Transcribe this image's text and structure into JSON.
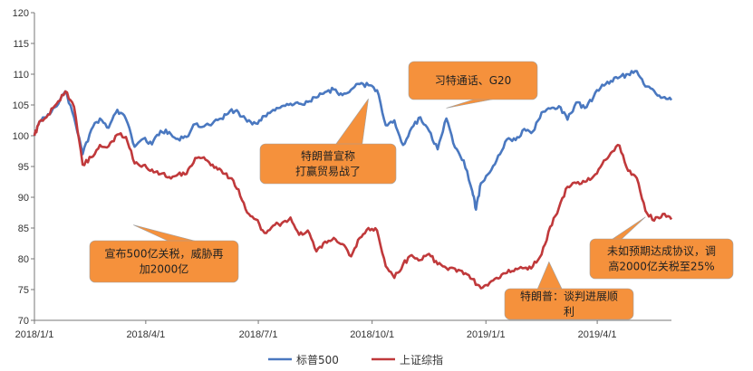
{
  "chart_data": {
    "type": "line",
    "title": "",
    "xlabel": "",
    "ylabel": "",
    "ylim": [
      70,
      120
    ],
    "yticks": [
      70,
      75,
      80,
      85,
      90,
      95,
      100,
      105,
      110,
      115,
      120
    ],
    "xticks": [
      "2018/1/1",
      "2018/4/1",
      "2018/7/1",
      "2018/10/1",
      "2019/1/1",
      "2019/4/1"
    ],
    "grid": false,
    "legend_position": "bottom",
    "series": [
      {
        "name": "标普500",
        "color": "#4a78c0",
        "points": [
          [
            "2018/1/1",
            100
          ],
          [
            "2018/1/5",
            102.3
          ],
          [
            "2018/1/12",
            103.5
          ],
          [
            "2018/1/19",
            104.8
          ],
          [
            "2018/1/26",
            107.2
          ],
          [
            "2018/2/2",
            103
          ],
          [
            "2018/2/9",
            97
          ],
          [
            "2018/2/16",
            101
          ],
          [
            "2018/2/23",
            102.8
          ],
          [
            "2018/3/2",
            101.3
          ],
          [
            "2018/3/9",
            104.2
          ],
          [
            "2018/3/16",
            102.7
          ],
          [
            "2018/3/23",
            98.2
          ],
          [
            "2018/3/30",
            99.5
          ],
          [
            "2018/4/6",
            98.6
          ],
          [
            "2018/4/13",
            100.8
          ],
          [
            "2018/4/20",
            100.6
          ],
          [
            "2018/4/27",
            99.5
          ],
          [
            "2018/5/4",
            99.8
          ],
          [
            "2018/5/11",
            101.9
          ],
          [
            "2018/5/18",
            101.5
          ],
          [
            "2018/5/25",
            102
          ],
          [
            "2018/6/1",
            102.8
          ],
          [
            "2018/6/8",
            104
          ],
          [
            "2018/6/15",
            103.8
          ],
          [
            "2018/6/22",
            102.3
          ],
          [
            "2018/6/29",
            102
          ],
          [
            "2018/7/6",
            103.2
          ],
          [
            "2018/7/13",
            104.2
          ],
          [
            "2018/7/20",
            104.8
          ],
          [
            "2018/7/27",
            105.2
          ],
          [
            "2018/8/3",
            105.2
          ],
          [
            "2018/8/10",
            105.5
          ],
          [
            "2018/8/17",
            106.2
          ],
          [
            "2018/8/24",
            107.1
          ],
          [
            "2018/8/31",
            107.5
          ],
          [
            "2018/9/7",
            106.6
          ],
          [
            "2018/9/14",
            107.5
          ],
          [
            "2018/9/21",
            108.4
          ],
          [
            "2018/9/28",
            108.2
          ],
          [
            "2018/10/5",
            107.4
          ],
          [
            "2018/10/12",
            101.7
          ],
          [
            "2018/10/19",
            102.5
          ],
          [
            "2018/10/26",
            98.5
          ],
          [
            "2018/11/2",
            101.3
          ],
          [
            "2018/11/9",
            103
          ],
          [
            "2018/11/16",
            100.8
          ],
          [
            "2018/11/23",
            97.8
          ],
          [
            "2018/11/30",
            102.8
          ],
          [
            "2018/12/7",
            98.1
          ],
          [
            "2018/12/14",
            96
          ],
          [
            "2018/12/21",
            91
          ],
          [
            "2018/12/24",
            88
          ],
          [
            "2018/12/28",
            92.3
          ],
          [
            "2019/1/4",
            94
          ],
          [
            "2019/1/11",
            96.8
          ],
          [
            "2019/1/18",
            99.4
          ],
          [
            "2019/1/25",
            99.3
          ],
          [
            "2019/2/1",
            101.1
          ],
          [
            "2019/2/8",
            100.7
          ],
          [
            "2019/2/15",
            103.8
          ],
          [
            "2019/2/22",
            104.4
          ],
          [
            "2019/3/1",
            104.8
          ],
          [
            "2019/3/8",
            102.6
          ],
          [
            "2019/3/15",
            105.4
          ],
          [
            "2019/3/22",
            104.5
          ],
          [
            "2019/3/29",
            106.3
          ],
          [
            "2019/4/5",
            108.3
          ],
          [
            "2019/4/12",
            108.9
          ],
          [
            "2019/4/19",
            109.5
          ],
          [
            "2019/4/26",
            110
          ],
          [
            "2019/5/3",
            110.5
          ],
          [
            "2019/5/10",
            108
          ],
          [
            "2019/5/17",
            107.3
          ],
          [
            "2019/5/24",
            106.2
          ],
          [
            "2019/5/31",
            105.8
          ]
        ]
      },
      {
        "name": "上证综指",
        "color": "#c0393b",
        "points": [
          [
            "2018/1/1",
            100
          ],
          [
            "2018/1/5",
            102.3
          ],
          [
            "2018/1/12",
            103.4
          ],
          [
            "2018/1/19",
            105.2
          ],
          [
            "2018/1/26",
            107.2
          ],
          [
            "2018/2/2",
            104.7
          ],
          [
            "2018/2/9",
            95.3
          ],
          [
            "2018/2/16",
            96.5
          ],
          [
            "2018/2/23",
            98.5
          ],
          [
            "2018/3/2",
            98.3
          ],
          [
            "2018/3/9",
            100.2
          ],
          [
            "2018/3/16",
            99.8
          ],
          [
            "2018/3/23",
            95.5
          ],
          [
            "2018/3/30",
            95.2
          ],
          [
            "2018/4/6",
            94.5
          ],
          [
            "2018/4/13",
            93.8
          ],
          [
            "2018/4/20",
            93.3
          ],
          [
            "2018/4/27",
            93.7
          ],
          [
            "2018/5/4",
            93.8
          ],
          [
            "2018/5/11",
            96.4
          ],
          [
            "2018/5/18",
            96.5
          ],
          [
            "2018/5/25",
            95.3
          ],
          [
            "2018/6/1",
            94.4
          ],
          [
            "2018/6/8",
            93.1
          ],
          [
            "2018/6/15",
            91.3
          ],
          [
            "2018/6/22",
            87.5
          ],
          [
            "2018/6/29",
            86.4
          ],
          [
            "2018/7/6",
            84.2
          ],
          [
            "2018/7/13",
            85.4
          ],
          [
            "2018/7/20",
            85.8
          ],
          [
            "2018/7/27",
            86.7
          ],
          [
            "2018/8/3",
            83.9
          ],
          [
            "2018/8/10",
            84.6
          ],
          [
            "2018/8/17",
            81.2
          ],
          [
            "2018/8/24",
            82.8
          ],
          [
            "2018/8/31",
            83.4
          ],
          [
            "2018/9/7",
            82.4
          ],
          [
            "2018/9/14",
            80.4
          ],
          [
            "2018/9/21",
            83.4
          ],
          [
            "2018/9/28",
            85
          ],
          [
            "2018/10/5",
            84.6
          ],
          [
            "2018/10/12",
            78.8
          ],
          [
            "2018/10/19",
            76.9
          ],
          [
            "2018/10/26",
            79.1
          ],
          [
            "2018/11/2",
            80.6
          ],
          [
            "2018/11/9",
            79.8
          ],
          [
            "2018/11/16",
            80.8
          ],
          [
            "2018/11/23",
            79.1
          ],
          [
            "2018/11/30",
            78.5
          ],
          [
            "2018/12/7",
            78.4
          ],
          [
            "2018/12/14",
            77.5
          ],
          [
            "2018/12/21",
            76.7
          ],
          [
            "2018/12/28",
            75.2
          ],
          [
            "2019/1/4",
            76.1
          ],
          [
            "2019/1/11",
            76.8
          ],
          [
            "2019/1/18",
            77.7
          ],
          [
            "2019/1/25",
            78.4
          ],
          [
            "2019/2/1",
            78.5
          ],
          [
            "2019/2/8",
            78.8
          ],
          [
            "2019/2/15",
            80.7
          ],
          [
            "2019/2/22",
            85.2
          ],
          [
            "2019/3/1",
            88.3
          ],
          [
            "2019/3/8",
            91.7
          ],
          [
            "2019/3/15",
            92.3
          ],
          [
            "2019/3/22",
            92.5
          ],
          [
            "2019/3/29",
            93.4
          ],
          [
            "2019/4/5",
            95.4
          ],
          [
            "2019/4/12",
            97.2
          ],
          [
            "2019/4/19",
            98.4
          ],
          [
            "2019/4/26",
            94.3
          ],
          [
            "2019/5/3",
            93.1
          ],
          [
            "2019/5/10",
            87.8
          ],
          [
            "2019/5/17",
            86.2
          ],
          [
            "2019/5/24",
            87.3
          ],
          [
            "2019/5/31",
            86.4
          ]
        ]
      }
    ],
    "annotations": [
      {
        "lines": [
          "宣布500亿关税，威胁再",
          "加2000亿"
        ],
        "target": [
          "2018/3/22",
          85.5
        ]
      },
      {
        "lines": [
          "特朗普宣称",
          "打赢贸易战了"
        ],
        "target": [
          "2018/9/28",
          106
        ]
      },
      {
        "lines": [
          "习特通话、G20"
        ],
        "target": [
          "2018/11/30",
          104.5
        ]
      },
      {
        "lines": [
          "特朗普：谈判进展顺",
          "利"
        ],
        "target": [
          "2019/2/21",
          79.5
        ]
      },
      {
        "lines": [
          "未如预期达成协议，调",
          "高2000亿关税至25%"
        ],
        "target": [
          "2019/5/10",
          86.8
        ]
      }
    ]
  }
}
